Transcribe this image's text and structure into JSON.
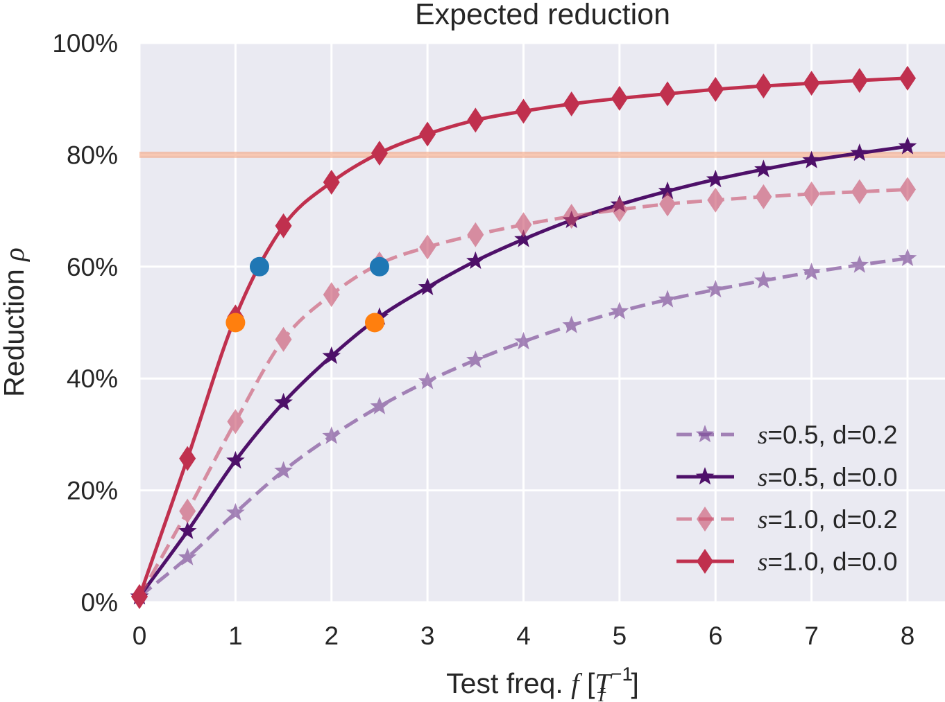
{
  "chart_data": {
    "type": "line",
    "title": "Expected reduction",
    "xlabel": {
      "prefix": "Test freq. ",
      "symbol": "f",
      "unit_open": " [",
      "unit_base": "T",
      "unit_sub": "I",
      "unit_sup": "−1",
      "unit_close": "]"
    },
    "ylabel": {
      "prefix": "Reduction ",
      "symbol": "ρ"
    },
    "xlim": [
      0,
      8
    ],
    "ylim": [
      0,
      1
    ],
    "grid": true,
    "x_ticks": [
      0,
      1,
      2,
      3,
      4,
      5,
      6,
      7,
      8
    ],
    "x_tick_labels": [
      "0",
      "1",
      "2",
      "3",
      "4",
      "5",
      "6",
      "7",
      "8"
    ],
    "y_ticks": [
      0,
      0.2,
      0.4,
      0.6,
      0.8,
      1.0
    ],
    "y_tick_labels": [
      "0%",
      "20%",
      "40%",
      "60%",
      "80%",
      "100%"
    ],
    "x": [
      0,
      0.5,
      1.0,
      1.5,
      2.0,
      2.5,
      3.0,
      3.5,
      4.0,
      4.5,
      5.0,
      5.5,
      6.0,
      6.5,
      7.0,
      7.5,
      8.0
    ],
    "series": [
      {
        "name_sym": "s",
        "name_rest": "=0.5, d=0.2",
        "color": "#7b4896",
        "opacity": 0.65,
        "dashed": true,
        "marker": "star",
        "values": [
          0.01,
          0.08,
          0.16,
          0.235,
          0.297,
          0.35,
          0.395,
          0.433,
          0.466,
          0.495,
          0.52,
          0.541,
          0.559,
          0.575,
          0.59,
          0.603,
          0.615
        ]
      },
      {
        "name_sym": "s",
        "name_rest": "=0.5, d=0.0",
        "color": "#4e1069",
        "opacity": 1,
        "dashed": false,
        "marker": "star",
        "values": [
          0.01,
          0.127,
          0.253,
          0.357,
          0.44,
          0.51,
          0.563,
          0.61,
          0.649,
          0.683,
          0.711,
          0.735,
          0.756,
          0.774,
          0.79,
          0.803,
          0.815
        ]
      },
      {
        "name_sym": "s",
        "name_rest": "=1.0, d=0.2",
        "color": "#c94f6a",
        "opacity": 0.6,
        "dashed": true,
        "marker": "diamond",
        "values": [
          0.01,
          0.163,
          0.323,
          0.47,
          0.55,
          0.605,
          0.635,
          0.657,
          0.675,
          0.69,
          0.702,
          0.712,
          0.719,
          0.725,
          0.73,
          0.734,
          0.738
        ]
      },
      {
        "name_sym": "s",
        "name_rest": "=1.0, d=0.0",
        "color": "#c0304e",
        "opacity": 1,
        "dashed": false,
        "marker": "diamond",
        "values": [
          0.01,
          0.257,
          0.51,
          0.673,
          0.751,
          0.803,
          0.837,
          0.862,
          0.878,
          0.891,
          0.901,
          0.909,
          0.917,
          0.923,
          0.928,
          0.933,
          0.937
        ]
      }
    ],
    "hline": {
      "y": 0.8,
      "color": "#f4a582"
    },
    "highlight_points": [
      {
        "x": 1.25,
        "y": 0.6,
        "color": "#1f77b4"
      },
      {
        "x": 2.5,
        "y": 0.6,
        "color": "#1f77b4"
      },
      {
        "x": 1.0,
        "y": 0.5,
        "color": "#ff7f0e"
      },
      {
        "x": 2.45,
        "y": 0.5,
        "color": "#ff7f0e"
      }
    ],
    "legend_position": "lower-right"
  }
}
